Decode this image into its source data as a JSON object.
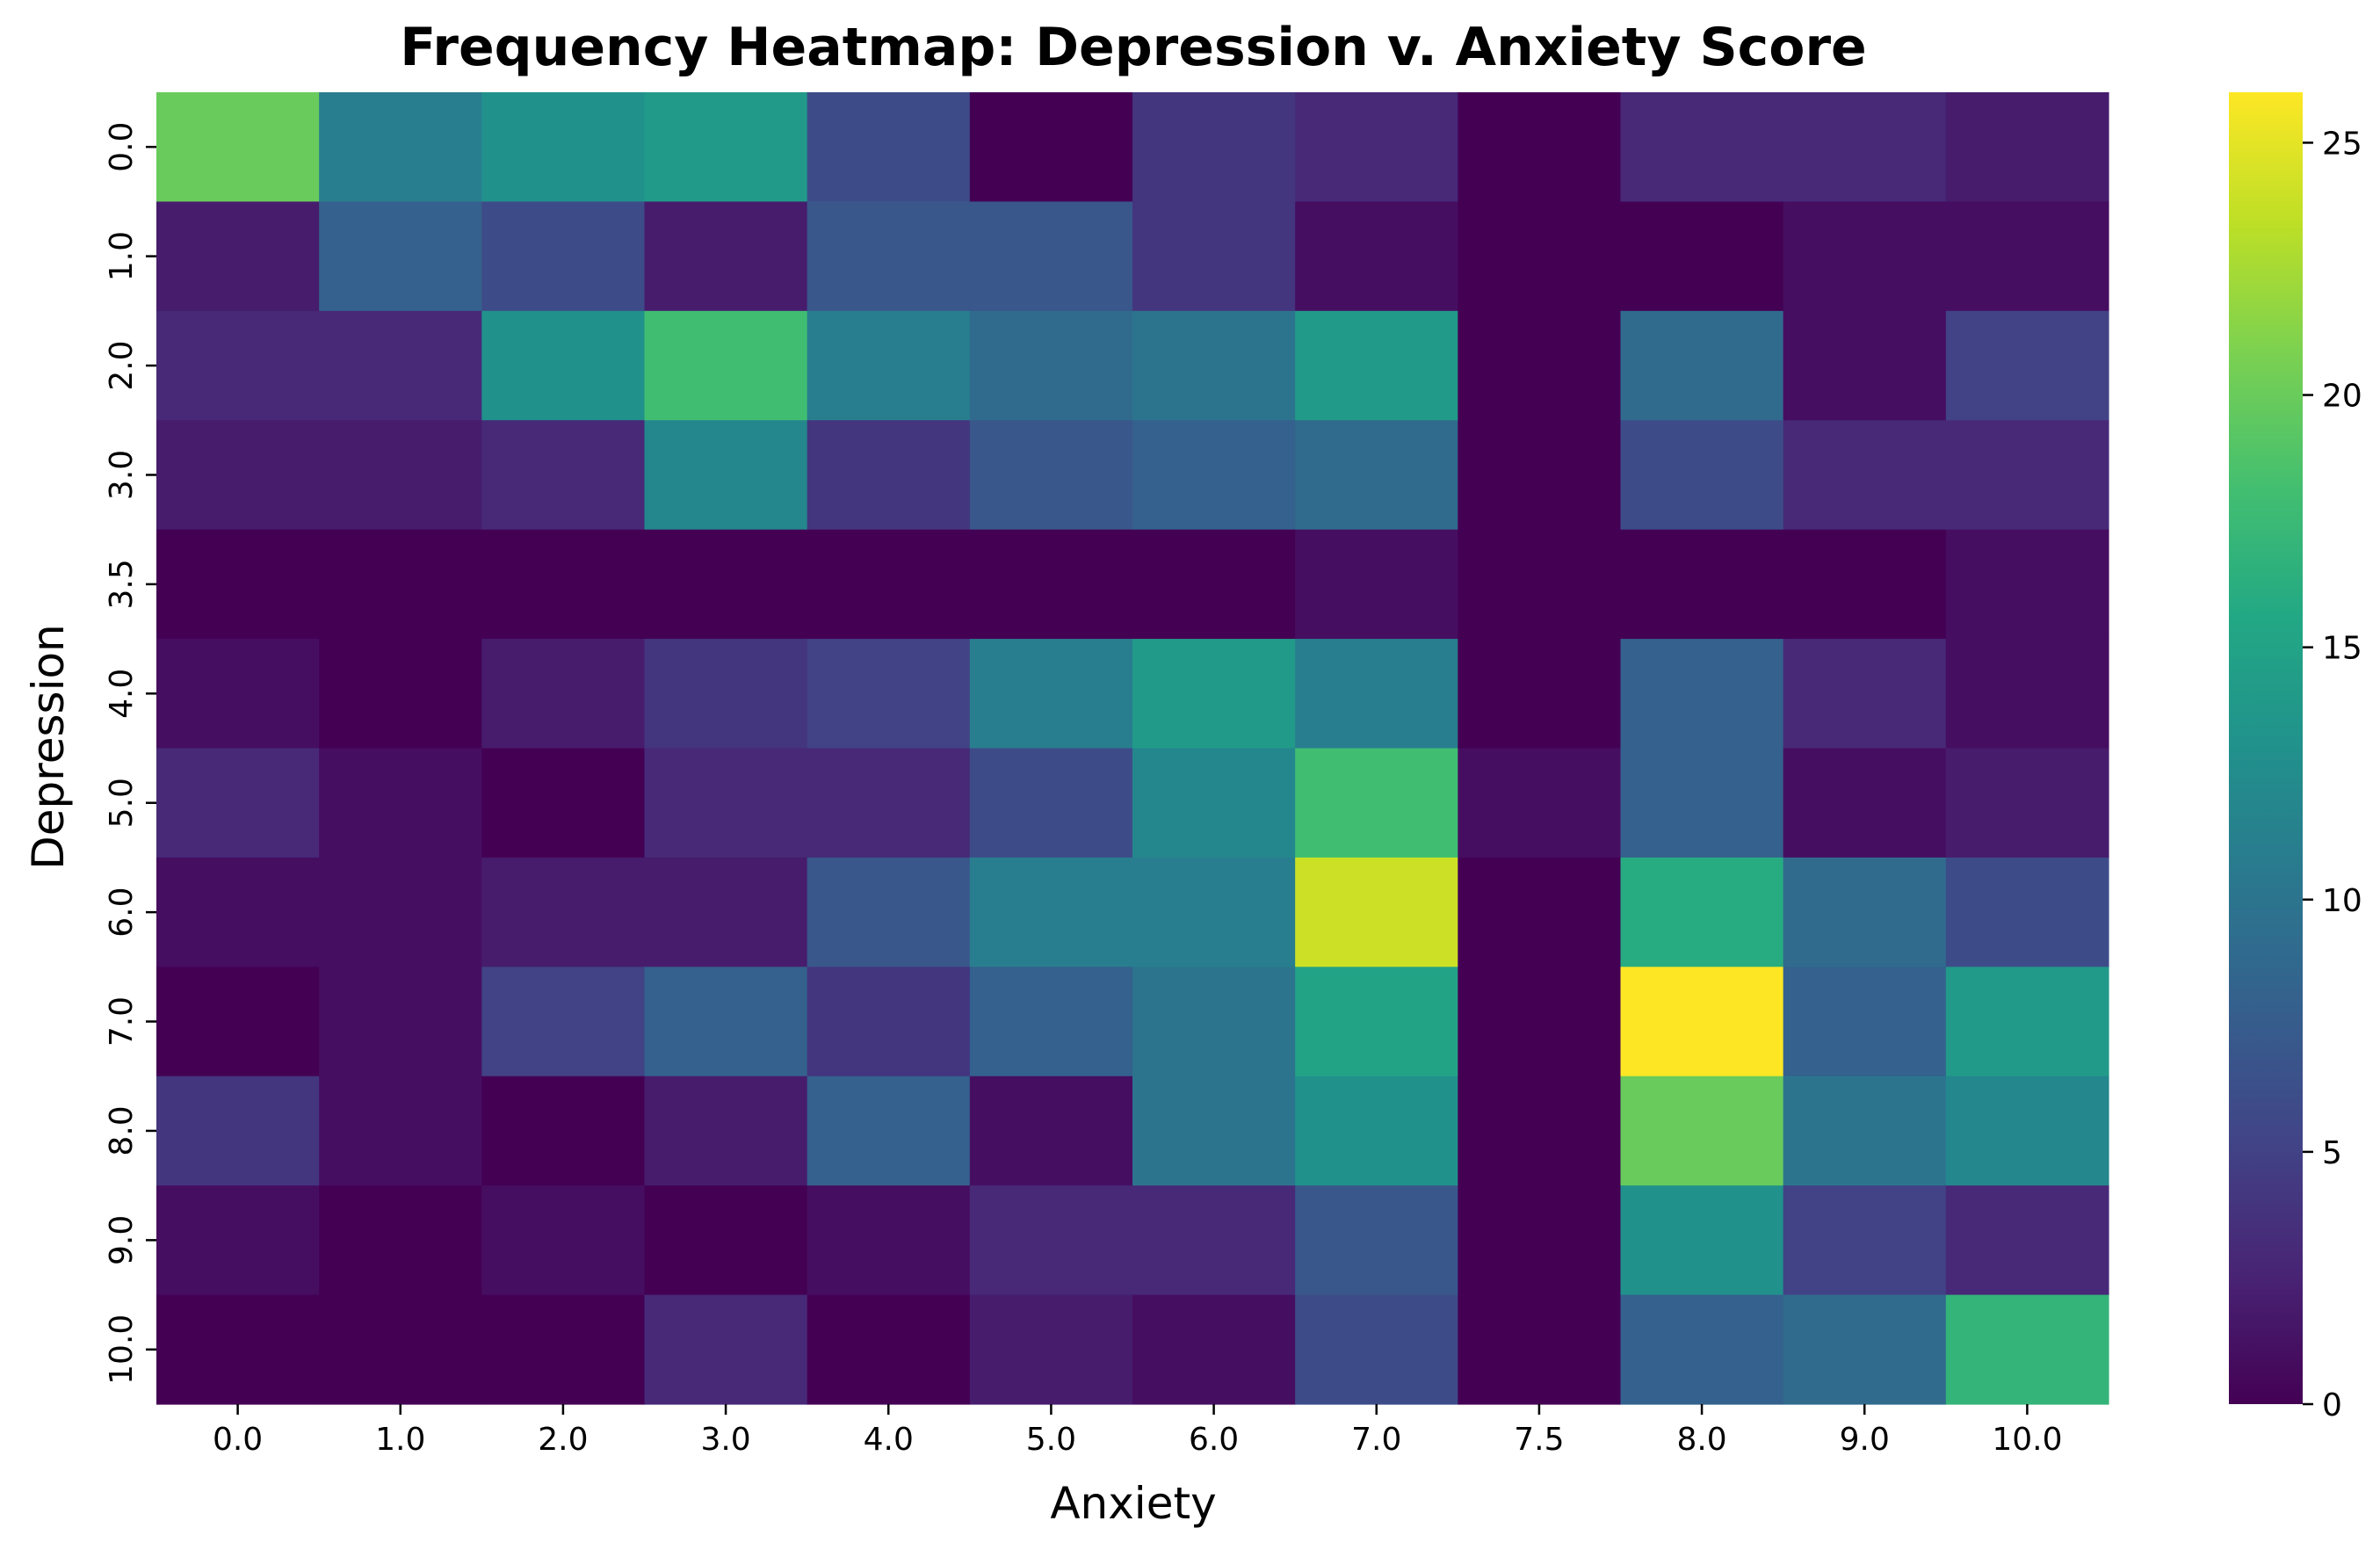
{
  "chart_data": {
    "type": "heatmap",
    "title": "Frequency Heatmap: Depression v. Anxiety Score",
    "xlabel": "Anxiety",
    "ylabel": "Depression",
    "x_categories": [
      "0.0",
      "1.0",
      "2.0",
      "3.0",
      "4.0",
      "5.0",
      "6.0",
      "7.0",
      "7.5",
      "8.0",
      "9.0",
      "10.0"
    ],
    "y_categories": [
      "0.0",
      "1.0",
      "2.0",
      "3.0",
      "3.5",
      "4.0",
      "5.0",
      "6.0",
      "7.0",
      "8.0",
      "9.0",
      "10.0"
    ],
    "values": [
      [
        20,
        11,
        13,
        14,
        6,
        0,
        4,
        3,
        0,
        3,
        3,
        2
      ],
      [
        2,
        8,
        6,
        2,
        7,
        7,
        4,
        1,
        0,
        0,
        1,
        1
      ],
      [
        3,
        3,
        13,
        18,
        11,
        9,
        10,
        14,
        0,
        9,
        1,
        5
      ],
      [
        2,
        2,
        3,
        12,
        4,
        7,
        8,
        9,
        0,
        6,
        3,
        3
      ],
      [
        0,
        0,
        0,
        0,
        0,
        0,
        0,
        1,
        0,
        0,
        0,
        1
      ],
      [
        1,
        0,
        2,
        4,
        5,
        11,
        14,
        11,
        0,
        8,
        3,
        1
      ],
      [
        3,
        1,
        0,
        3,
        3,
        6,
        12,
        18,
        1,
        8,
        1,
        2
      ],
      [
        1,
        1,
        2,
        2,
        7,
        11,
        11,
        24,
        0,
        16,
        9,
        6
      ],
      [
        0,
        1,
        5,
        8,
        4,
        8,
        10,
        15,
        0,
        26,
        8,
        14
      ],
      [
        4,
        1,
        0,
        2,
        8,
        1,
        10,
        13,
        0,
        20,
        10,
        12
      ],
      [
        1,
        0,
        1,
        0,
        1,
        3,
        3,
        7,
        0,
        13,
        5,
        3
      ],
      [
        0,
        0,
        0,
        3,
        0,
        2,
        1,
        6,
        0,
        8,
        9,
        17
      ]
    ],
    "colorbar": {
      "min": 0,
      "max": 26,
      "ticks": [
        "0",
        "5",
        "10",
        "15",
        "20",
        "25"
      ]
    },
    "colormap": "viridis"
  }
}
